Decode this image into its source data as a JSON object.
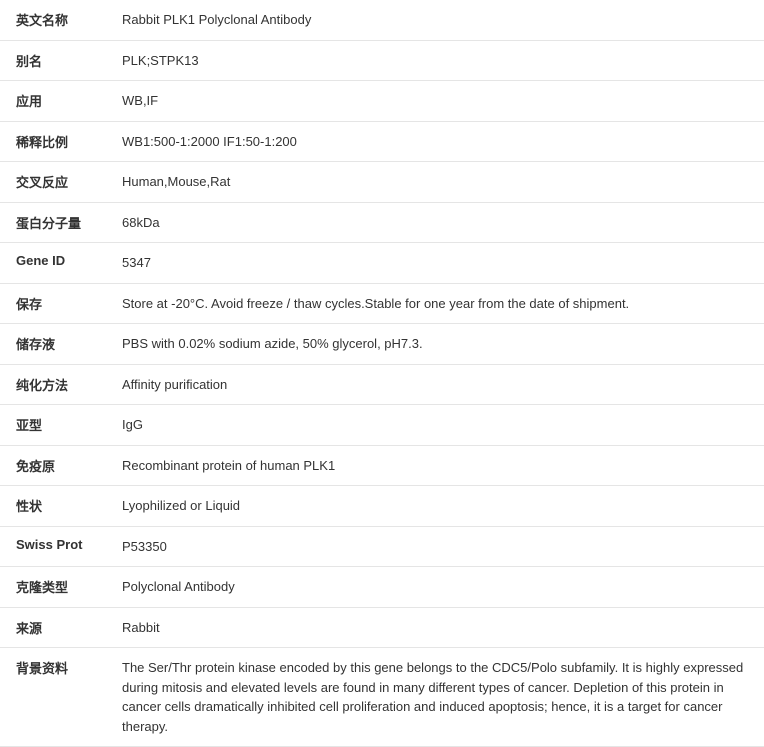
{
  "spec_table": {
    "rows": [
      {
        "label": "英文名称",
        "value": "Rabbit PLK1 Polyclonal Antibody"
      },
      {
        "label": "别名",
        "value": "PLK;STPK13"
      },
      {
        "label": "应用",
        "value": "WB,IF"
      },
      {
        "label": "稀释比例",
        "value": "WB1:500-1:2000 IF1:50-1:200"
      },
      {
        "label": "交叉反应",
        "value": "Human,Mouse,Rat"
      },
      {
        "label": "蛋白分子量",
        "value": "68kDa"
      },
      {
        "label": "Gene ID",
        "value": "5347"
      },
      {
        "label": "保存",
        "value": "Store at -20°C. Avoid freeze / thaw cycles.Stable for one year from the date of shipment."
      },
      {
        "label": "储存液",
        "value": "PBS with 0.02% sodium azide, 50% glycerol, pH7.3."
      },
      {
        "label": "纯化方法",
        "value": "Affinity purification"
      },
      {
        "label": "亚型",
        "value": "IgG"
      },
      {
        "label": "免疫原",
        "value": "Recombinant protein of human PLK1"
      },
      {
        "label": "性状",
        "value": "Lyophilized or Liquid"
      },
      {
        "label": "Swiss Prot",
        "value": "P53350"
      },
      {
        "label": "克隆类型",
        "value": "Polyclonal Antibody"
      },
      {
        "label": "来源",
        "value": "Rabbit"
      },
      {
        "label": "背景资料",
        "value": "The Ser/Thr protein kinase encoded by this gene belongs to the CDC5/Polo subfamily. It is highly expressed during mitosis and elevated levels are found in many different types of cancer. Depletion of this protein in cancer cells dramatically inhibited cell proliferation and induced apoptosis; hence, it is a target for cancer therapy."
      }
    ],
    "border_color": "#e5e5e5",
    "text_color": "#333333",
    "bg_color": "#ffffff",
    "font_size": 13,
    "label_col_width": 118
  }
}
